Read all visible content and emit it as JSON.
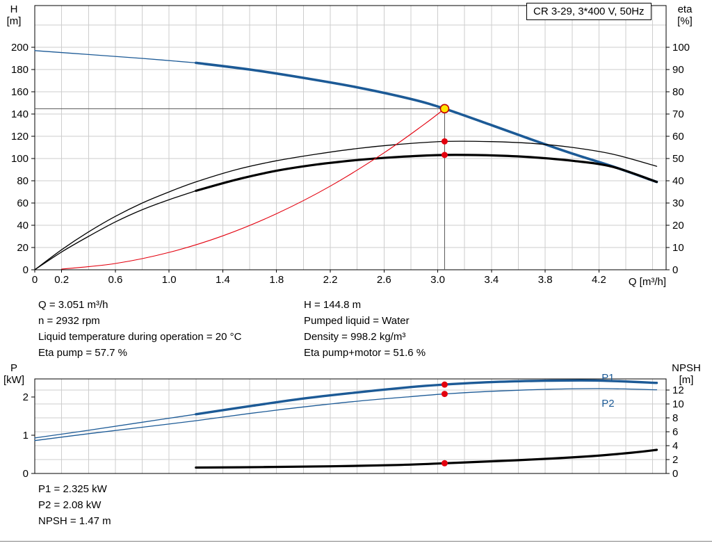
{
  "model_box": "CR 3-29, 3*400 V, 50Hz",
  "axes": {
    "h": [
      "H",
      "[m]"
    ],
    "eta": [
      "eta",
      "[%]"
    ],
    "p": [
      "P",
      "[kW]"
    ],
    "npsh": [
      "NPSH",
      "[m]"
    ],
    "q": "Q [m³/h]"
  },
  "info_top": {
    "left": [
      "Q = 3.051 m³/h",
      "n = 2932 rpm",
      "Liquid temperature during operation = 20 °C",
      "Eta pump = 57.7 %"
    ],
    "right": [
      "H = 144.8 m",
      "Pumped liquid = Water",
      "Density = 998.2 kg/m³",
      "Eta pump+motor = 51.6 %"
    ]
  },
  "info_bottom": [
    "P1 = 2.325 kW",
    "P2 = 2.08 kW",
    "NPSH = 1.47 m"
  ],
  "colors": {
    "curve_blue": "#1c5a96",
    "curve_black": "#000000",
    "curve_red": "#e3000e",
    "duty_fill": "#ffe600",
    "duty_ring": "#c00000",
    "grid": "#cdcdcd"
  },
  "chart_data": [
    {
      "name": "head-efficiency-chart",
      "type": "line",
      "title": "CR 3-29, 3*400 V, 50Hz",
      "x_axis": {
        "label": "Q [m³/h]",
        "min": 0,
        "max": 4.7,
        "grid_step": 0.2,
        "tick_values": [
          0,
          0.2,
          0.6,
          1.0,
          1.4,
          1.8,
          2.2,
          2.6,
          3.0,
          3.4,
          3.8,
          4.2
        ],
        "tick_labels": [
          "0",
          "0.2",
          "0.6",
          "1.0",
          "1.4",
          "1.8",
          "2.2",
          "2.6",
          "3.0",
          "3.4",
          "3.8",
          "4.2"
        ]
      },
      "y_left": {
        "label": "H [m]",
        "min": 0,
        "max": 237.5,
        "tick_step": 20,
        "tick_max": 200
      },
      "y_right": {
        "label": "eta [%]",
        "min": 0,
        "max": 118.75,
        "tick_step": 10,
        "tick_max": 100
      },
      "grid_axis": "right",
      "crosshair": {
        "q": 3.051,
        "value": 144.8,
        "axis": "left"
      },
      "series": [
        {
          "name": "qh-curve-lead",
          "axis": "left",
          "color": "#1c5a96",
          "width": 1.3,
          "points": [
            [
              0,
              197
            ],
            [
              0.4,
              193.5
            ],
            [
              0.8,
              190
            ],
            [
              1.2,
              186
            ]
          ]
        },
        {
          "name": "qh-curve",
          "axis": "left",
          "color": "#1c5a96",
          "width": 3.6,
          "points": [
            [
              1.2,
              186
            ],
            [
              1.6,
              180
            ],
            [
              2.0,
              172.5
            ],
            [
              2.4,
              164
            ],
            [
              2.8,
              153.5
            ],
            [
              3.051,
              144.8
            ],
            [
              3.4,
              130
            ],
            [
              3.7,
              117
            ],
            [
              4.0,
              104.5
            ],
            [
              4.3,
              93
            ],
            [
              4.63,
              79
            ]
          ]
        },
        {
          "name": "eta-pump-curve",
          "axis": "right",
          "color": "#000000",
          "width": 1.3,
          "points": [
            [
              0,
              0
            ],
            [
              0.2,
              9
            ],
            [
              0.4,
              17
            ],
            [
              0.6,
              24
            ],
            [
              0.8,
              30
            ],
            [
              1.0,
              35
            ],
            [
              1.2,
              39.5
            ],
            [
              1.5,
              45
            ],
            [
              1.8,
              49
            ],
            [
              2.1,
              52
            ],
            [
              2.4,
              54.5
            ],
            [
              2.7,
              56.3
            ],
            [
              3.051,
              57.7
            ],
            [
              3.4,
              57.6
            ],
            [
              3.7,
              56.8
            ],
            [
              4.0,
              55
            ],
            [
              4.3,
              52
            ],
            [
              4.63,
              46.5
            ]
          ]
        },
        {
          "name": "eta-pump-motor-lead",
          "axis": "right",
          "color": "#000000",
          "width": 1.3,
          "points": [
            [
              0,
              0
            ],
            [
              0.2,
              8
            ],
            [
              0.4,
              15
            ],
            [
              0.6,
              21.5
            ],
            [
              0.8,
              27
            ],
            [
              1.0,
              31.5
            ],
            [
              1.2,
              35.5
            ]
          ]
        },
        {
          "name": "eta-pump-motor-curve",
          "axis": "right",
          "color": "#000000",
          "width": 3.2,
          "points": [
            [
              1.2,
              35.5
            ],
            [
              1.5,
              40.5
            ],
            [
              1.8,
              44.5
            ],
            [
              2.1,
              47.3
            ],
            [
              2.4,
              49.3
            ],
            [
              2.7,
              50.7
            ],
            [
              3.051,
              51.6
            ],
            [
              3.4,
              51.4
            ],
            [
              3.7,
              50.6
            ],
            [
              4.0,
              49
            ],
            [
              4.3,
              46.3
            ],
            [
              4.63,
              39.5
            ]
          ]
        },
        {
          "name": "system-curve",
          "axis": "left",
          "color": "#e3000e",
          "width": 1.1,
          "points": [
            [
              0.2,
              0.6
            ],
            [
              0.6,
              5.6
            ],
            [
              1.0,
              15.6
            ],
            [
              1.4,
              30.5
            ],
            [
              1.8,
              50.4
            ],
            [
              2.2,
              75.2
            ],
            [
              2.6,
              105.1
            ],
            [
              2.9,
              130.8
            ],
            [
              3.051,
              144.8
            ]
          ]
        }
      ],
      "markers": [
        {
          "q": 3.051,
          "value": 57.7,
          "axis": "right",
          "style": "dot"
        },
        {
          "q": 3.051,
          "value": 51.6,
          "axis": "right",
          "style": "dot"
        },
        {
          "q": 3.051,
          "value": 144.8,
          "axis": "left",
          "style": "duty"
        }
      ]
    },
    {
      "name": "power-npsh-chart",
      "type": "line",
      "title": "",
      "x_axis": {
        "label": "",
        "min": 0,
        "max": 4.7,
        "grid_step": 0.2,
        "tick_values": [],
        "tick_labels": []
      },
      "y_left": {
        "label": "P [kW]",
        "min": 0,
        "max": 2.473,
        "tick_step": 1,
        "tick_max": 2
      },
      "y_right": {
        "label": "NPSH [m]",
        "min": 0,
        "max": 13.6,
        "tick_step": 2,
        "tick_max": 12
      },
      "grid_axis": "right",
      "series": [
        {
          "name": "p1-curve-lead",
          "axis": "left",
          "color": "#1c5a96",
          "width": 1.3,
          "points": [
            [
              0,
              0.93
            ],
            [
              0.4,
              1.13
            ],
            [
              0.8,
              1.34
            ],
            [
              1.2,
              1.55
            ]
          ]
        },
        {
          "name": "p1-curve",
          "axis": "left",
          "color": "#1c5a96",
          "width": 3.4,
          "points": [
            [
              1.2,
              1.55
            ],
            [
              1.6,
              1.76
            ],
            [
              2.0,
              1.96
            ],
            [
              2.4,
              2.12
            ],
            [
              2.8,
              2.26
            ],
            [
              3.051,
              2.325
            ],
            [
              3.4,
              2.39
            ],
            [
              3.8,
              2.425
            ],
            [
              4.2,
              2.43
            ],
            [
              4.63,
              2.37
            ]
          ]
        },
        {
          "name": "p2-curve",
          "axis": "left",
          "color": "#1c5a96",
          "width": 1.3,
          "points": [
            [
              0,
              0.86
            ],
            [
              0.4,
              1.04
            ],
            [
              0.8,
              1.21
            ],
            [
              1.2,
              1.38
            ],
            [
              1.6,
              1.57
            ],
            [
              2.0,
              1.74
            ],
            [
              2.4,
              1.89
            ],
            [
              2.8,
              2.01
            ],
            [
              3.051,
              2.08
            ],
            [
              3.4,
              2.15
            ],
            [
              3.8,
              2.2
            ],
            [
              4.2,
              2.22
            ],
            [
              4.63,
              2.19
            ]
          ]
        },
        {
          "name": "npsh-curve",
          "axis": "right",
          "color": "#000000",
          "width": 3.2,
          "points": [
            [
              1.2,
              0.85
            ],
            [
              1.7,
              0.92
            ],
            [
              2.2,
              1.03
            ],
            [
              2.7,
              1.22
            ],
            [
              3.051,
              1.47
            ],
            [
              3.4,
              1.75
            ],
            [
              3.8,
              2.1
            ],
            [
              4.15,
              2.5
            ],
            [
              4.45,
              3.0
            ],
            [
              4.63,
              3.4
            ]
          ]
        }
      ],
      "annotations": [
        {
          "text": "P1",
          "q": 4.22,
          "value": 2.42,
          "axis": "left",
          "color": "#1c5a96"
        },
        {
          "text": "P2",
          "q": 4.22,
          "value": 1.75,
          "axis": "left",
          "color": "#1c5a96"
        }
      ],
      "markers": [
        {
          "q": 3.051,
          "value": 2.325,
          "axis": "left",
          "style": "dot"
        },
        {
          "q": 3.051,
          "value": 2.08,
          "axis": "left",
          "style": "dot"
        },
        {
          "q": 3.051,
          "value": 1.47,
          "axis": "right",
          "style": "dot"
        }
      ]
    }
  ]
}
